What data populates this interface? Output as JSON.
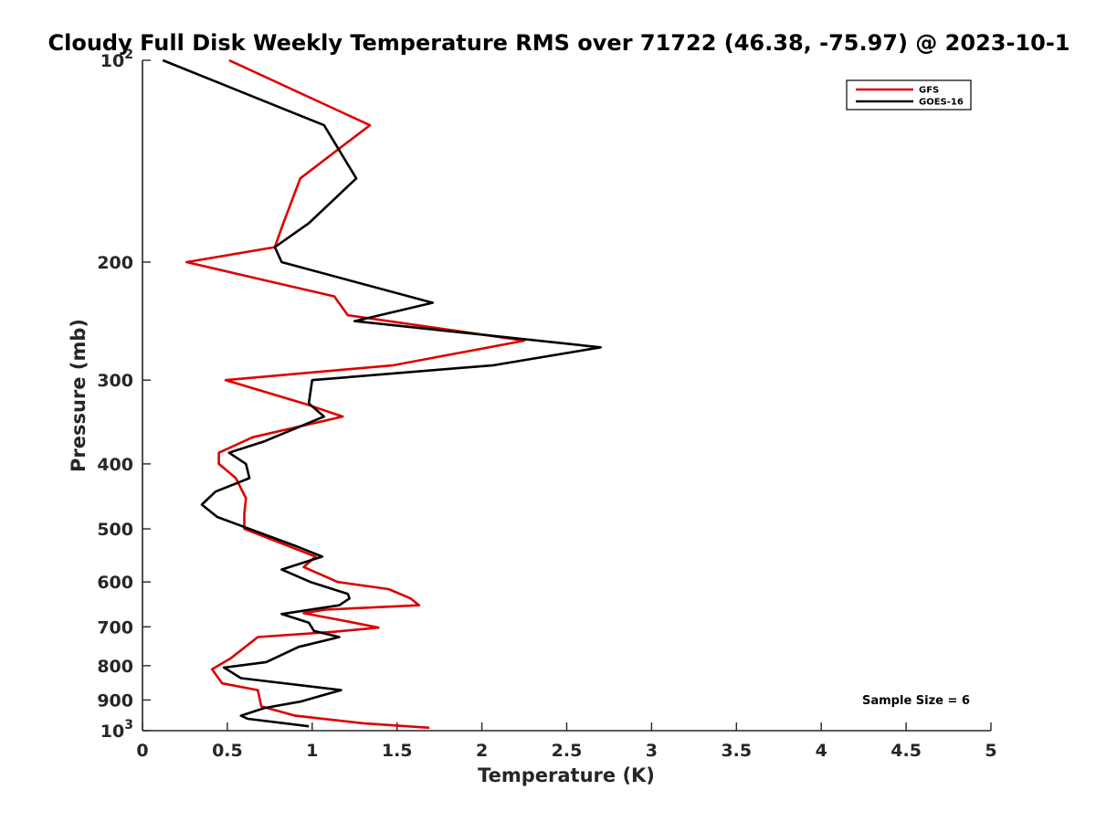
{
  "chart_data": {
    "type": "line",
    "title": "Cloudy Full Disk Weekly Temperature RMS over 71722 (46.38, -75.97) @ 2023-10-1",
    "xlabel": "Temperature (K)",
    "ylabel": "Pressure (mb)",
    "xlim": [
      0,
      5
    ],
    "ylim": [
      100,
      1000
    ],
    "y_scale": "log",
    "y_reversed": true,
    "x_ticks": [
      "0",
      "0.5",
      "1",
      "1.5",
      "2",
      "2.5",
      "3",
      "3.5",
      "4",
      "4.5",
      "5"
    ],
    "x_tick_values": [
      0,
      0.5,
      1,
      1.5,
      2,
      2.5,
      3,
      3.5,
      4,
      4.5,
      5
    ],
    "y_tick_values": [
      100,
      200,
      300,
      400,
      500,
      600,
      700,
      800,
      900,
      1000
    ],
    "y_ticks": [
      {
        "base": "10",
        "exp": "2"
      },
      {
        "base": "200",
        "exp": ""
      },
      {
        "base": "300",
        "exp": ""
      },
      {
        "base": "400",
        "exp": ""
      },
      {
        "base": "500",
        "exp": ""
      },
      {
        "base": "600",
        "exp": ""
      },
      {
        "base": "700",
        "exp": ""
      },
      {
        "base": "800",
        "exp": ""
      },
      {
        "base": "900",
        "exp": ""
      },
      {
        "base": "10",
        "exp": "3"
      }
    ],
    "grid": false,
    "legend_position": "top-right",
    "annotation": "Sample Size = 6",
    "series": [
      {
        "name": "GFS",
        "color": "#dd0000",
        "points": [
          [
            0.51,
            100
          ],
          [
            1.34,
            125
          ],
          [
            0.93,
            150
          ],
          [
            0.83,
            175
          ],
          [
            0.78,
            190
          ],
          [
            0.26,
            200
          ],
          [
            1.13,
            225
          ],
          [
            1.21,
            240
          ],
          [
            2.25,
            262
          ],
          [
            1.48,
            285
          ],
          [
            0.49,
            300
          ],
          [
            0.95,
            325
          ],
          [
            1.18,
            340
          ],
          [
            0.65,
            365
          ],
          [
            0.45,
            385
          ],
          [
            0.45,
            400
          ],
          [
            0.55,
            420
          ],
          [
            0.61,
            450
          ],
          [
            0.6,
            475
          ],
          [
            0.6,
            500
          ],
          [
            1.02,
            550
          ],
          [
            0.95,
            570
          ],
          [
            1.15,
            600
          ],
          [
            1.45,
            615
          ],
          [
            1.58,
            635
          ],
          [
            1.63,
            650
          ],
          [
            1.08,
            660
          ],
          [
            0.95,
            668
          ],
          [
            1.22,
            688
          ],
          [
            1.39,
            702
          ],
          [
            1.13,
            712
          ],
          [
            0.68,
            725
          ],
          [
            0.52,
            780
          ],
          [
            0.41,
            810
          ],
          [
            0.47,
            850
          ],
          [
            0.68,
            870
          ],
          [
            0.7,
            920
          ],
          [
            0.9,
            950
          ],
          [
            1.3,
            975
          ],
          [
            1.69,
            990
          ]
        ]
      },
      {
        "name": "GOES-16",
        "color": "#000000",
        "points": [
          [
            0.12,
            100
          ],
          [
            1.07,
            125
          ],
          [
            1.26,
            150
          ],
          [
            0.98,
            175
          ],
          [
            0.78,
            190
          ],
          [
            0.82,
            200
          ],
          [
            1.71,
            230
          ],
          [
            1.25,
            245
          ],
          [
            2.7,
            268
          ],
          [
            2.07,
            285
          ],
          [
            1.0,
            300
          ],
          [
            0.98,
            325
          ],
          [
            1.07,
            340
          ],
          [
            0.72,
            370
          ],
          [
            0.51,
            385
          ],
          [
            0.61,
            400
          ],
          [
            0.63,
            420
          ],
          [
            0.43,
            440
          ],
          [
            0.35,
            460
          ],
          [
            0.44,
            480
          ],
          [
            0.9,
            530
          ],
          [
            1.06,
            550
          ],
          [
            0.82,
            575
          ],
          [
            0.99,
            600
          ],
          [
            1.21,
            625
          ],
          [
            1.22,
            635
          ],
          [
            1.16,
            650
          ],
          [
            0.82,
            670
          ],
          [
            0.98,
            690
          ],
          [
            1.01,
            710
          ],
          [
            1.16,
            725
          ],
          [
            0.92,
            750
          ],
          [
            0.73,
            790
          ],
          [
            0.48,
            805
          ],
          [
            0.58,
            835
          ],
          [
            1.17,
            870
          ],
          [
            0.93,
            905
          ],
          [
            0.72,
            925
          ],
          [
            0.58,
            950
          ],
          [
            0.62,
            960
          ],
          [
            0.98,
            985
          ]
        ]
      }
    ]
  }
}
